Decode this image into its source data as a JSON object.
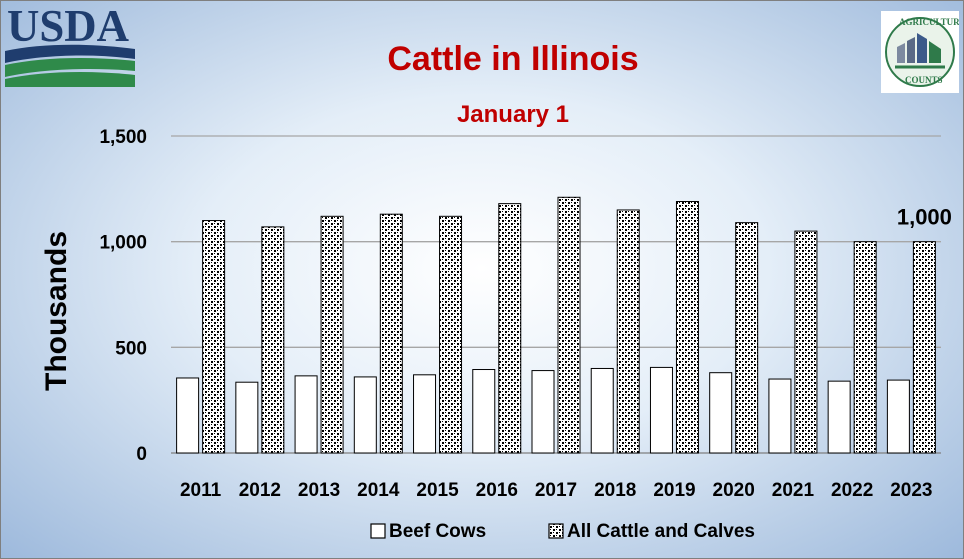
{
  "logos": {
    "usda_text": "USDA",
    "ag_counts_text": [
      "AGRICULTURE",
      "COUNTS"
    ]
  },
  "chart_data": {
    "type": "bar",
    "title": "Cattle in Illinois",
    "subtitle": "January 1",
    "ylabel": "Thousands",
    "xlabel": "",
    "categories": [
      "2011",
      "2012",
      "2013",
      "2014",
      "2015",
      "2016",
      "2017",
      "2018",
      "2019",
      "2020",
      "2021",
      "2022",
      "2023"
    ],
    "series": [
      {
        "name": "Beef Cows",
        "values": [
          355,
          335,
          365,
          360,
          370,
          395,
          390,
          400,
          405,
          380,
          350,
          340,
          345
        ]
      },
      {
        "name": "All Cattle and Calves",
        "values": [
          1100,
          1070,
          1120,
          1130,
          1120,
          1180,
          1210,
          1150,
          1190,
          1090,
          1050,
          1000,
          1000
        ]
      }
    ],
    "ylim": [
      0,
      1500
    ],
    "yticks": [
      "0",
      "500",
      "1,000",
      "1,500"
    ],
    "annotations": [
      {
        "label": "1,000",
        "category": "2023",
        "series": "All Cattle and Calves"
      }
    ],
    "grid": true,
    "legend_position": "bottom",
    "colors": {
      "title": "#c00000",
      "beef": "#ffffff",
      "all_cattle_fill": "#ffffff",
      "all_cattle_pattern": "#000000",
      "text": "#000000"
    }
  }
}
